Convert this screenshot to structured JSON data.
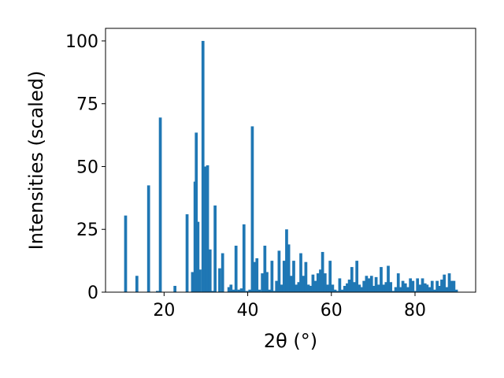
{
  "chart_data": {
    "type": "bar",
    "xlabel": "2θ (°)",
    "ylabel": "Intensities (scaled)",
    "xlim": [
      6.0,
      94.5
    ],
    "ylim": [
      0,
      105
    ],
    "xticks": [
      20,
      40,
      60,
      80
    ],
    "xtick_labels": [
      "20",
      "40",
      "60",
      "80"
    ],
    "yticks": [
      0,
      25,
      50,
      75,
      100
    ],
    "ytick_labels": [
      "0",
      "25",
      "50",
      "75",
      "100"
    ],
    "bar_color": "#1f77b4",
    "bar_width": 0.7,
    "x": [
      10.8,
      13.5,
      16.3,
      18.4,
      19.1,
      22.6,
      25.5,
      26.8,
      27.4,
      27.7,
      28.1,
      28.6,
      29.3,
      29.8,
      30.4,
      31.0,
      31.6,
      32.2,
      33.3,
      34.0,
      35.5,
      36.0,
      36.6,
      37.2,
      37.9,
      38.5,
      39.1,
      39.8,
      40.5,
      41.1,
      41.6,
      42.2,
      42.8,
      43.5,
      44.1,
      44.6,
      45.2,
      45.8,
      46.3,
      46.9,
      47.5,
      48.1,
      48.7,
      49.3,
      49.8,
      50.4,
      51.0,
      51.6,
      52.2,
      52.7,
      53.3,
      53.9,
      54.5,
      55.1,
      55.6,
      56.2,
      56.8,
      57.4,
      57.9,
      58.5,
      59.1,
      59.7,
      60.3,
      60.9,
      61.4,
      62.0,
      62.6,
      63.2,
      63.8,
      64.3,
      64.9,
      65.5,
      66.1,
      66.7,
      67.2,
      67.8,
      68.4,
      69.0,
      69.6,
      70.2,
      70.7,
      71.3,
      71.9,
      72.5,
      73.1,
      73.6,
      74.2,
      74.8,
      75.4,
      76.0,
      76.5,
      77.1,
      77.7,
      78.3,
      78.9,
      79.5,
      80.0,
      80.6,
      81.2,
      81.8,
      82.4,
      82.9,
      83.5,
      84.1,
      84.7,
      85.3,
      85.8,
      86.4,
      87.0,
      87.6,
      88.2,
      88.8,
      89.3,
      89.9
    ],
    "values": [
      30.5,
      6.5,
      42.5,
      0.5,
      69.5,
      2.5,
      31.0,
      8.0,
      44.0,
      63.5,
      28.0,
      9.0,
      100.0,
      50.0,
      50.5,
      17.0,
      0.5,
      34.5,
      9.5,
      15.5,
      2.0,
      3.0,
      1.0,
      18.5,
      1.0,
      1.5,
      27.0,
      0.5,
      1.0,
      66.0,
      12.0,
      13.5,
      1.0,
      7.5,
      18.5,
      8.0,
      1.0,
      12.5,
      0.5,
      4.5,
      16.5,
      3.0,
      12.5,
      25.0,
      19.0,
      6.5,
      12.5,
      3.0,
      4.0,
      15.5,
      6.5,
      12.0,
      3.0,
      2.5,
      7.0,
      4.5,
      7.5,
      9.0,
      16.0,
      7.5,
      3.0,
      12.5,
      3.0,
      1.0,
      0.5,
      5.5,
      1.0,
      2.5,
      3.5,
      5.0,
      10.0,
      4.0,
      12.5,
      3.0,
      2.0,
      4.5,
      6.5,
      5.5,
      6.5,
      2.5,
      6.0,
      3.0,
      10.0,
      3.0,
      4.0,
      10.5,
      4.0,
      0.5,
      2.0,
      7.5,
      2.0,
      4.5,
      3.5,
      2.0,
      5.5,
      4.5,
      0.5,
      5.5,
      3.0,
      5.5,
      3.5,
      3.0,
      2.0,
      4.5,
      1.0,
      4.5,
      2.5,
      5.0,
      7.0,
      2.0,
      7.5,
      4.5,
      4.5,
      1.0
    ]
  }
}
